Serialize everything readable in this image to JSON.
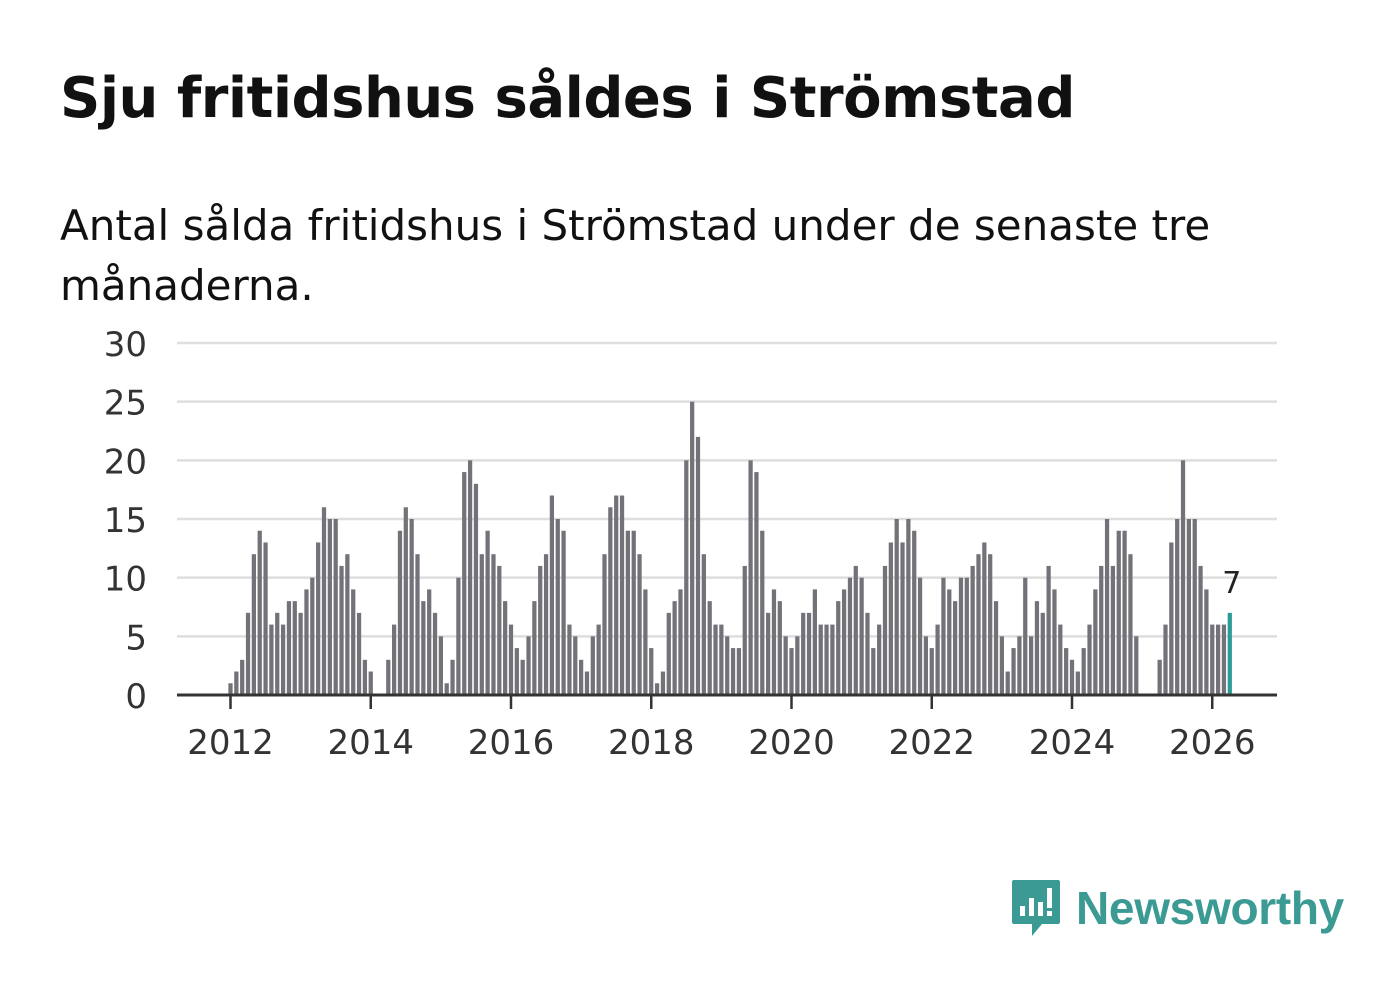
{
  "title": "Sju fritidshus såldes i Strömstad",
  "subtitle": "Antal sålda fritidshus i Strömstad under de senaste tre månaderna.",
  "logo": {
    "name": "Newsworthy",
    "icon": "newsworthy-logo-icon"
  },
  "colors": {
    "bar": "#737278",
    "highlight": "#2a9c96",
    "grid": "#dedede",
    "axis": "#333333",
    "brand": "#3c9a95"
  },
  "chart_data": {
    "type": "bar",
    "title": "Sju fritidshus såldes i Strömstad",
    "xlabel": "",
    "ylabel": "",
    "ylim": [
      0,
      30
    ],
    "yticks": [
      "0",
      "5",
      "10",
      "15",
      "20",
      "25",
      "30"
    ],
    "xticks": [
      "2012",
      "2014",
      "2016",
      "2018",
      "2020",
      "2022",
      "2024",
      "2026"
    ],
    "start": "2011-03",
    "frequency": "monthly",
    "highlight_label": "7",
    "values": [
      0,
      0,
      0,
      0,
      0,
      0,
      0,
      0,
      0,
      0,
      1,
      2,
      3,
      7,
      12,
      14,
      13,
      6,
      7,
      6,
      8,
      8,
      7,
      9,
      10,
      13,
      16,
      15,
      15,
      11,
      12,
      9,
      7,
      3,
      2,
      0,
      0,
      3,
      6,
      14,
      16,
      15,
      12,
      8,
      9,
      7,
      5,
      1,
      3,
      10,
      19,
      20,
      18,
      12,
      14,
      12,
      11,
      8,
      6,
      4,
      3,
      5,
      8,
      11,
      12,
      17,
      15,
      14,
      6,
      5,
      3,
      2,
      5,
      6,
      12,
      16,
      17,
      17,
      14,
      14,
      12,
      9,
      4,
      1,
      2,
      7,
      8,
      9,
      20,
      25,
      22,
      12,
      8,
      6,
      6,
      5,
      4,
      4,
      11,
      20,
      19,
      14,
      7,
      9,
      8,
      5,
      4,
      5,
      7,
      7,
      9,
      6,
      6,
      6,
      8,
      9,
      10,
      11,
      10,
      7,
      4,
      6,
      11,
      13,
      15,
      13,
      15,
      14,
      10,
      5,
      4,
      6,
      10,
      9,
      8,
      10,
      10,
      11,
      12,
      13,
      12,
      8,
      5,
      2,
      4,
      5,
      10,
      5,
      8,
      7,
      11,
      9,
      6,
      4,
      3,
      2,
      4,
      6,
      9,
      11,
      15,
      11,
      14,
      14,
      12,
      5,
      0,
      0,
      0,
      3,
      6,
      13,
      15,
      20,
      15,
      15,
      11,
      9,
      6,
      6,
      6,
      7
    ]
  }
}
